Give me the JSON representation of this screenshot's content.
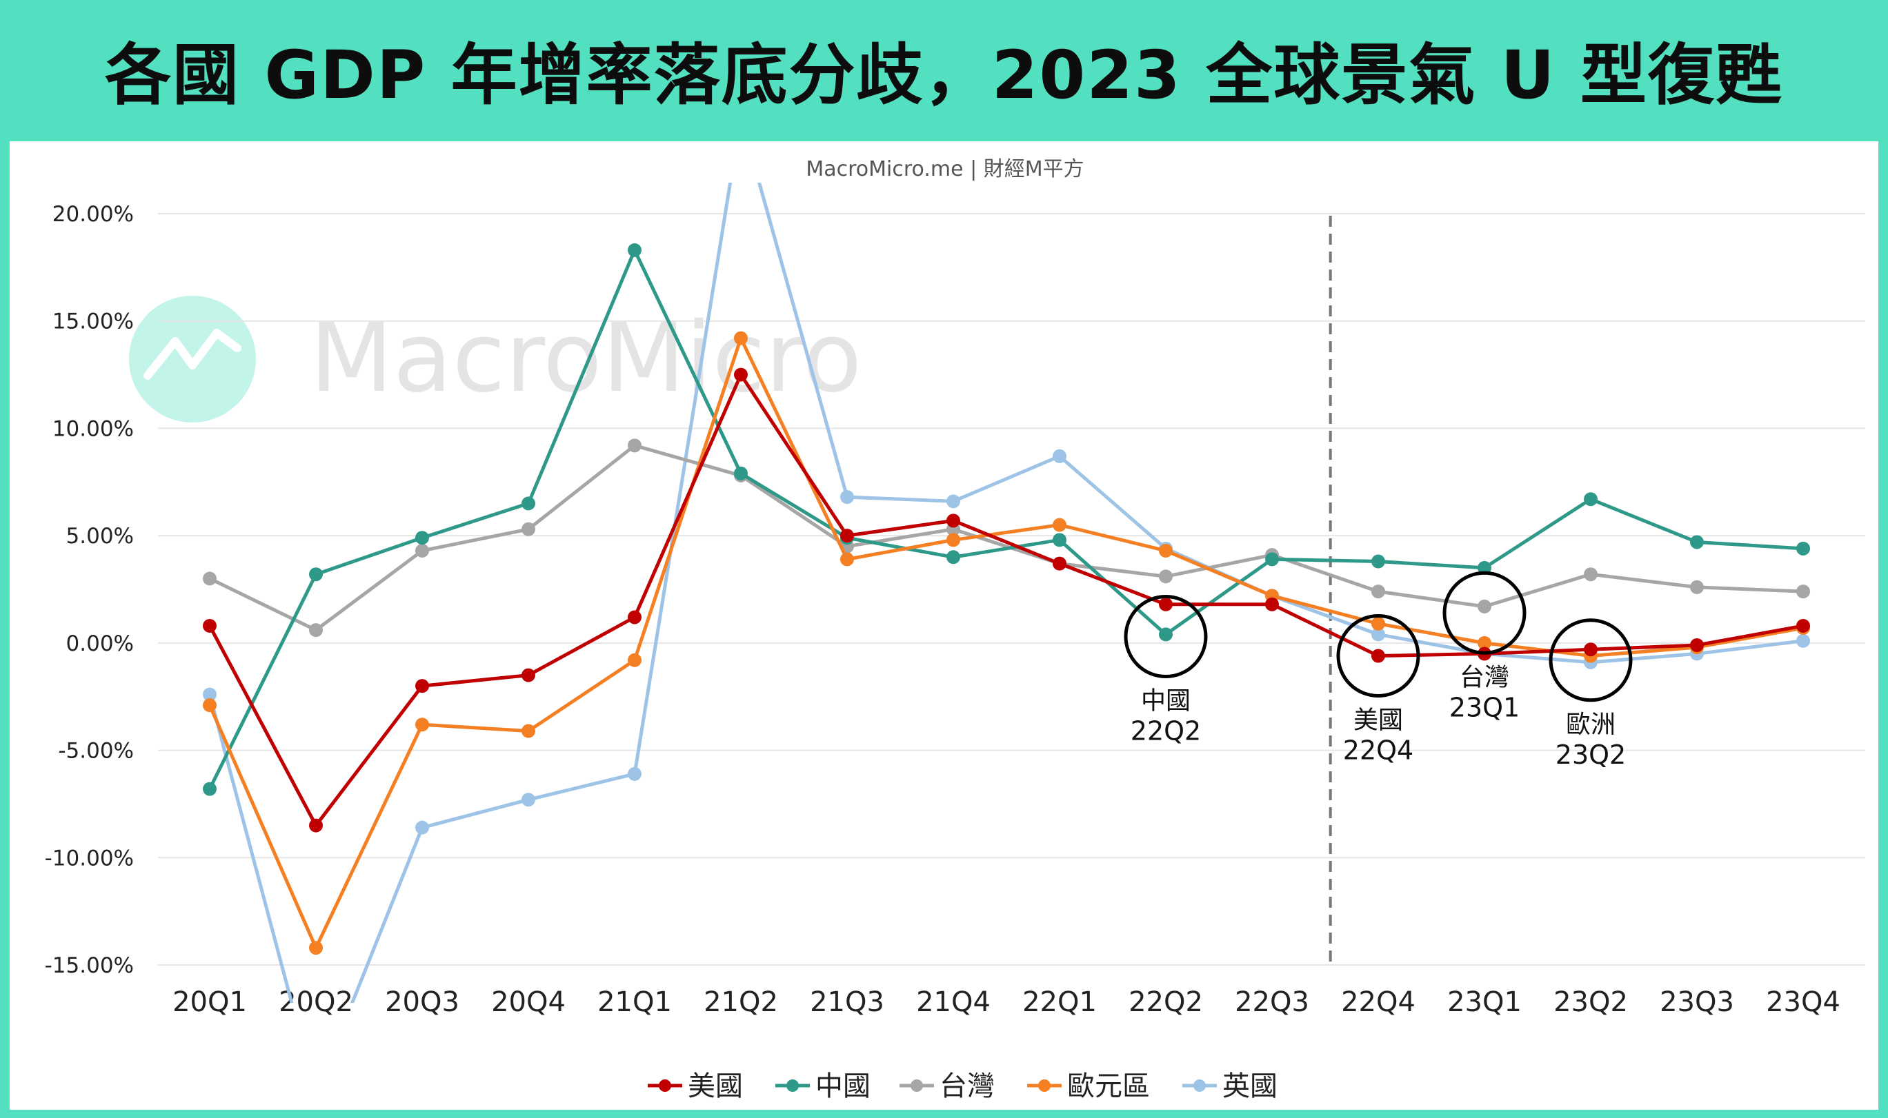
{
  "header": {
    "title": "各國 GDP 年增率落底分歧，2023 全球景氣 U 型復甦"
  },
  "source": "MacroMicro.me | 財經M平方",
  "watermark": {
    "text": "MacroMicro"
  },
  "colors": {
    "background": "#52e0c1",
    "panel": "#ffffff"
  },
  "chart_data": {
    "type": "line",
    "categories": [
      "20Q1",
      "20Q2",
      "20Q3",
      "20Q4",
      "21Q1",
      "21Q2",
      "21Q3",
      "21Q4",
      "22Q1",
      "22Q2",
      "22Q3",
      "22Q4",
      "23Q1",
      "23Q2",
      "23Q3",
      "23Q4"
    ],
    "y_ticks": [
      "20.00%",
      "15.00%",
      "10.00%",
      "5.00%",
      "0.00%",
      "-5.00%",
      "-10.00%",
      "-15.00%"
    ],
    "ylim": [
      -15,
      20
    ],
    "grid": true,
    "legend_position": "bottom",
    "forecast_divider_after": "22Q3",
    "series": [
      {
        "name": "美國",
        "color": "#c00000",
        "values": [
          0.8,
          -8.5,
          -2.0,
          -1.5,
          1.2,
          12.5,
          5.0,
          5.7,
          3.7,
          1.8,
          1.8,
          -0.6,
          -0.5,
          -0.3,
          -0.1,
          0.8
        ]
      },
      {
        "name": "中國",
        "color": "#2e9989",
        "values": [
          -6.8,
          3.2,
          4.9,
          6.5,
          18.3,
          7.9,
          4.9,
          4.0,
          4.8,
          0.4,
          3.9,
          3.8,
          3.5,
          6.7,
          4.7,
          4.4
        ]
      },
      {
        "name": "台灣",
        "color": "#a6a6a6",
        "values": [
          3.0,
          0.6,
          4.3,
          5.3,
          9.2,
          7.8,
          4.5,
          5.3,
          3.7,
          3.1,
          4.1,
          2.4,
          1.7,
          3.2,
          2.6,
          2.4
        ]
      },
      {
        "name": "歐元區",
        "color": "#f58024",
        "values": [
          -2.9,
          -14.2,
          -3.8,
          -4.1,
          -0.8,
          14.2,
          3.9,
          4.8,
          5.5,
          4.3,
          2.2,
          0.9,
          0.0,
          -0.6,
          -0.2,
          0.7
        ]
      },
      {
        "name": "英國",
        "color": "#9dc3e6",
        "values": [
          -2.4,
          -21.0,
          -8.6,
          -7.3,
          -6.1,
          24.5,
          6.8,
          6.6,
          8.7,
          4.4,
          2.2,
          0.4,
          -0.5,
          -0.9,
          -0.5,
          0.1
        ]
      }
    ],
    "annotations": [
      {
        "label_line1": "中國",
        "label_line2": "22Q2",
        "category": "22Q2",
        "value": 0.3
      },
      {
        "label_line1": "美國",
        "label_line2": "22Q4",
        "category": "22Q4",
        "value": -0.6
      },
      {
        "label_line1": "台灣",
        "label_line2": "23Q1",
        "category": "23Q1",
        "value": 1.4
      },
      {
        "label_line1": "歐洲",
        "label_line2": "23Q2",
        "category": "23Q2",
        "value": -0.8
      }
    ]
  }
}
